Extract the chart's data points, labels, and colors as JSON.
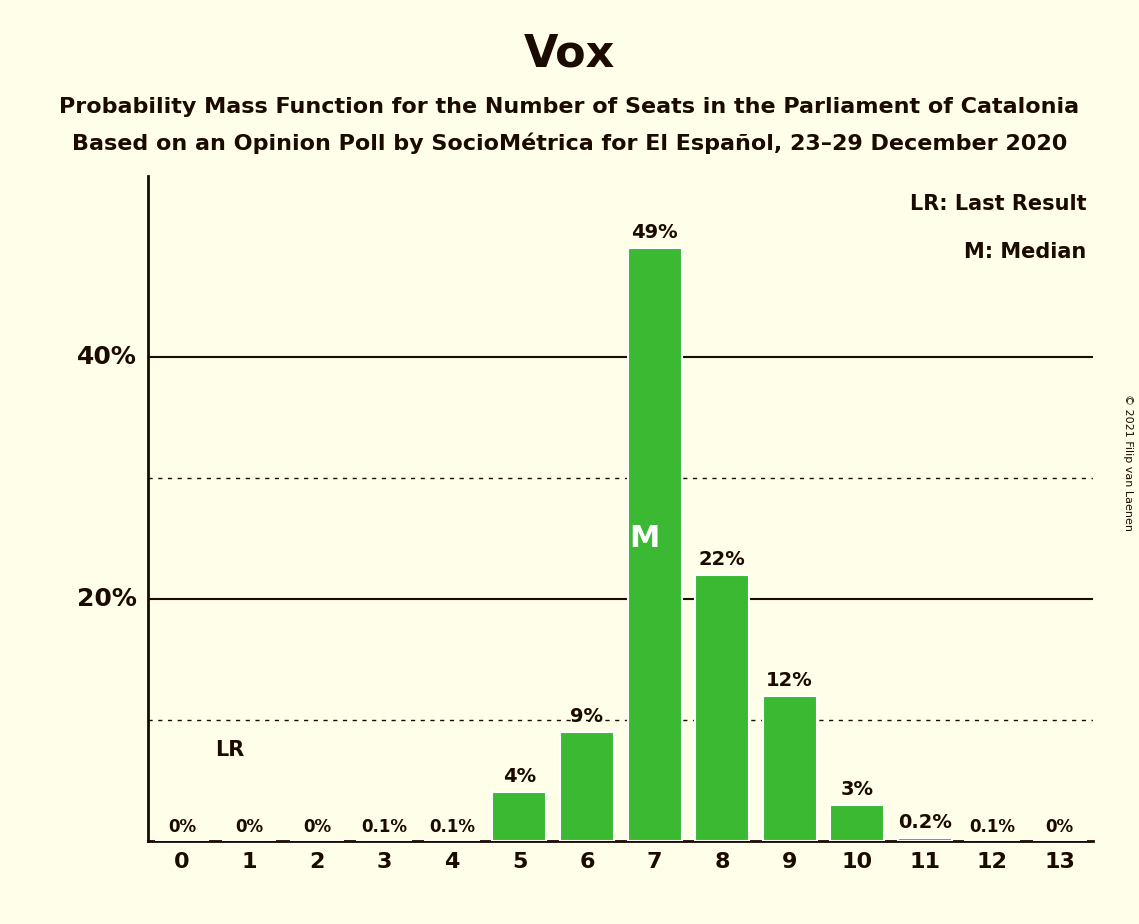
{
  "title": "Vox",
  "subtitle1": "Probability Mass Function for the Number of Seats in the Parliament of Catalonia",
  "subtitle2": "Based on an Opinion Poll by SocioMétrica for El Español, 23–29 December 2020",
  "copyright": "© 2021 Filip van Laenen",
  "categories": [
    0,
    1,
    2,
    3,
    4,
    5,
    6,
    7,
    8,
    9,
    10,
    11,
    12,
    13
  ],
  "values": [
    0.0,
    0.0,
    0.0,
    0.1,
    0.1,
    4.0,
    9.0,
    49.0,
    22.0,
    12.0,
    3.0,
    0.2,
    0.1,
    0.0
  ],
  "labels": [
    "0%",
    "0%",
    "0%",
    "0.1%",
    "0.1%",
    "4%",
    "9%",
    "49%",
    "22%",
    "12%",
    "3%",
    "0.2%",
    "0.1%",
    "0%"
  ],
  "bar_color": "#3cb933",
  "background_color": "#fffee8",
  "text_color": "#1a0a00",
  "median_bar": 7,
  "median_label": "M",
  "lr_label": "LR",
  "legend_lr": "LR: Last Result",
  "legend_m": "M: Median",
  "solid_yticks": [
    20,
    40
  ],
  "dotted_yticks": [
    10,
    30
  ],
  "ylim": [
    0,
    55
  ],
  "xlim": [
    -0.5,
    13.5
  ],
  "title_fontsize": 32,
  "subtitle_fontsize": 16,
  "label_fontsize": 14,
  "tick_fontsize": 16,
  "legend_fontsize": 15,
  "bar_width": 0.8
}
